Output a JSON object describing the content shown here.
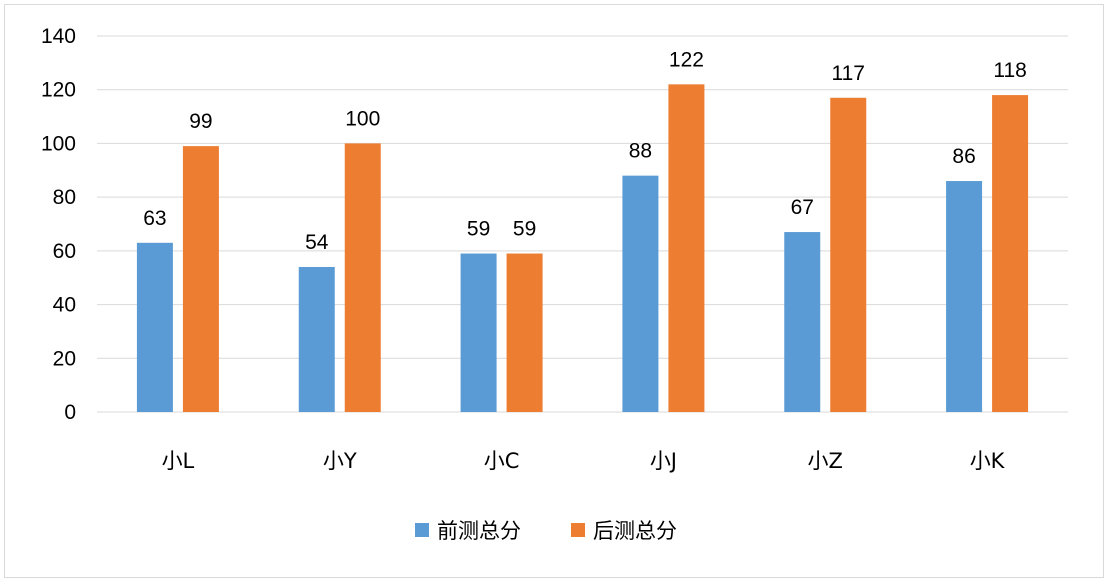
{
  "chart_data": {
    "type": "bar",
    "categories": [
      "小L",
      "小Y",
      "小C",
      "小J",
      "小Z",
      "小K"
    ],
    "series": [
      {
        "name": "前测总分",
        "values": [
          63,
          54,
          59,
          88,
          67,
          86
        ],
        "color": "#5b9bd5"
      },
      {
        "name": "后测总分",
        "values": [
          99,
          100,
          59,
          122,
          117,
          118
        ],
        "color": "#ed7d31"
      }
    ],
    "ylim": [
      0,
      140
    ],
    "yticks": [
      0,
      20,
      40,
      60,
      80,
      100,
      120,
      140
    ],
    "grid": true,
    "gridline_color": "#d9d9d9",
    "data_labels": true,
    "legend_position": "bottom"
  }
}
